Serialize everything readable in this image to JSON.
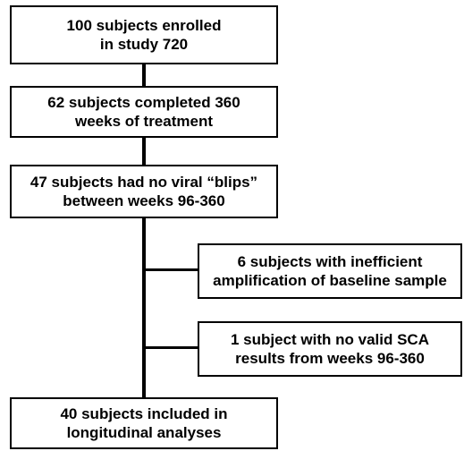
{
  "flowchart": {
    "boxes": [
      {
        "id": "enrolled",
        "text": "100 subjects enrolled\nin study 720"
      },
      {
        "id": "completed",
        "text": "62 subjects completed 360\nweeks of treatment"
      },
      {
        "id": "no-blips",
        "text": "47 subjects had no viral “blips”\nbetween weeks 96-360"
      },
      {
        "id": "excluded-amplification",
        "text": "6 subjects with inefficient\namplification of baseline sample"
      },
      {
        "id": "excluded-sca",
        "text": "1 subject with no valid SCA\nresults from weeks 96-360"
      },
      {
        "id": "included",
        "text": "40 subjects included in\nlongitudinal analyses"
      }
    ]
  }
}
